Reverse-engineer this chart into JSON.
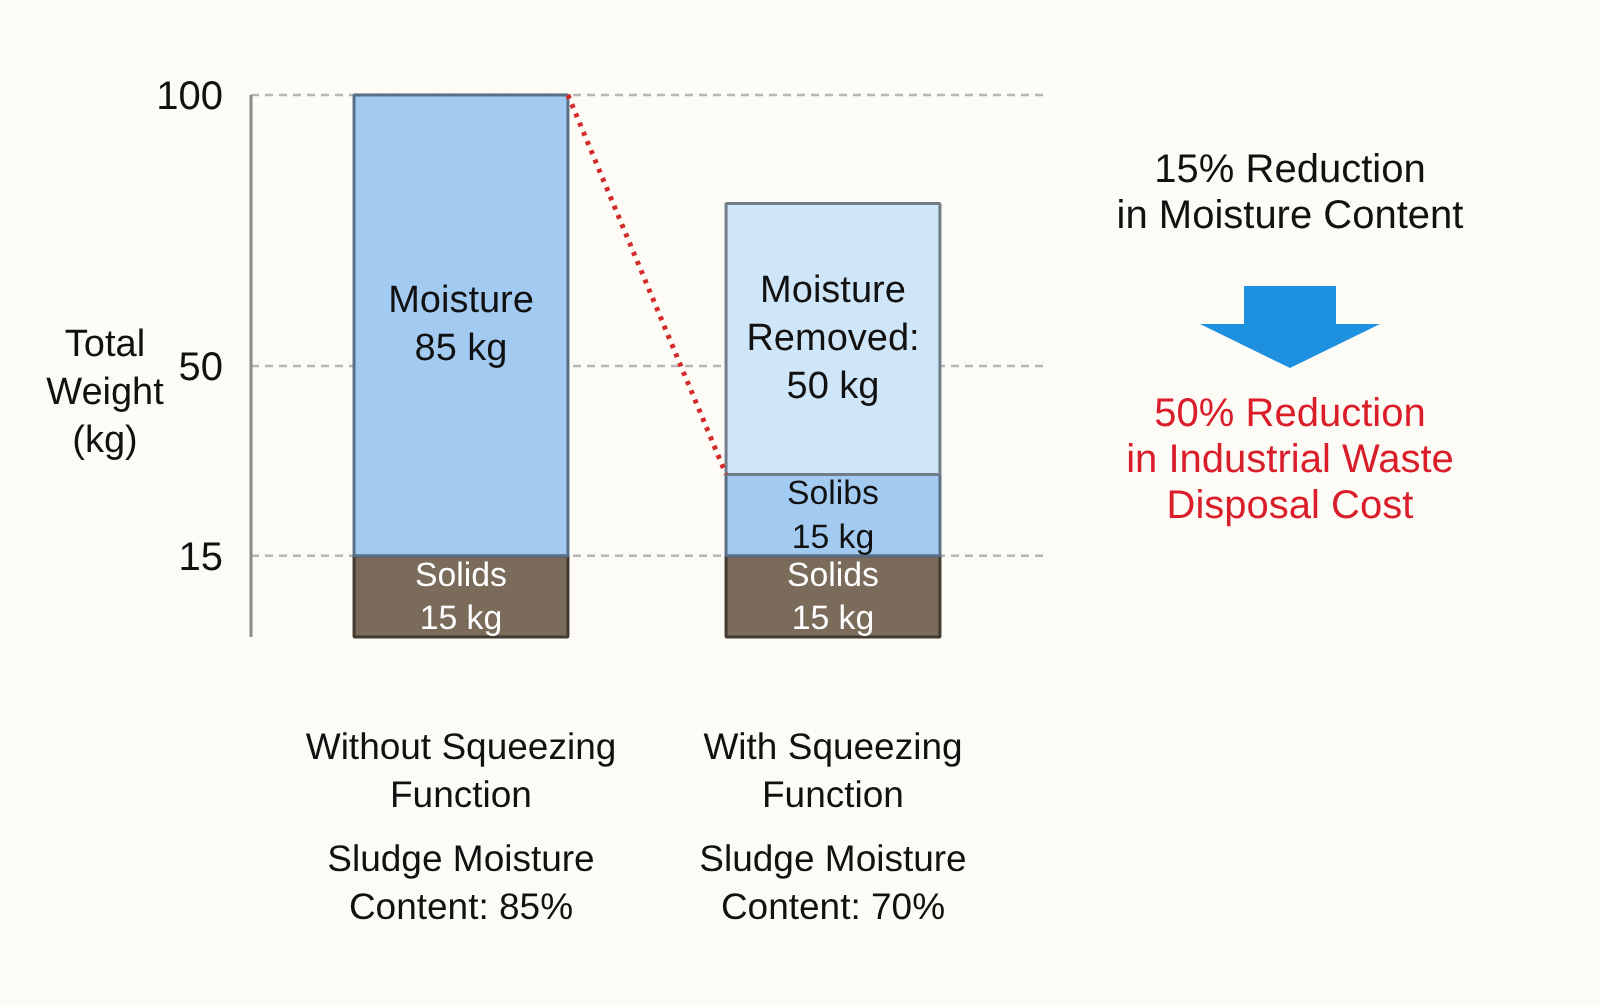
{
  "chart_data": {
    "type": "bar",
    "stacked": true,
    "ylabel": "Total\nWeight\n(kg)",
    "categories": [
      "Without Squeezing\nFunction",
      "With Squeezing\nFunction"
    ],
    "ylim": [
      0,
      100
    ],
    "yticks": [
      15,
      50,
      100
    ],
    "grid": "y",
    "series": [
      {
        "color": "#7b6b5b",
        "values": [
          15,
          15
        ],
        "value_labels": [
          "Solids\n15 kg",
          "Solids\n15 kg"
        ]
      },
      {
        "color": "#a3cbf2",
        "values": [
          85,
          15
        ],
        "value_labels": [
          "Moisture\n85 kg",
          "Solibs\n15 kg"
        ]
      },
      {
        "color": "#cfe5f8",
        "values": [
          null,
          50
        ],
        "value_labels": [
          null,
          "Moisture\nRemoved:\n50 kg"
        ]
      }
    ],
    "annotations": [
      "15% Reduction\nin Moisture Content",
      "50% Reduction\nin Industrial Waste\nDisposal Cost",
      "Sludge Moisture\nContent: 85%",
      "Sludge Moisture\nContent: 70%"
    ]
  }
}
